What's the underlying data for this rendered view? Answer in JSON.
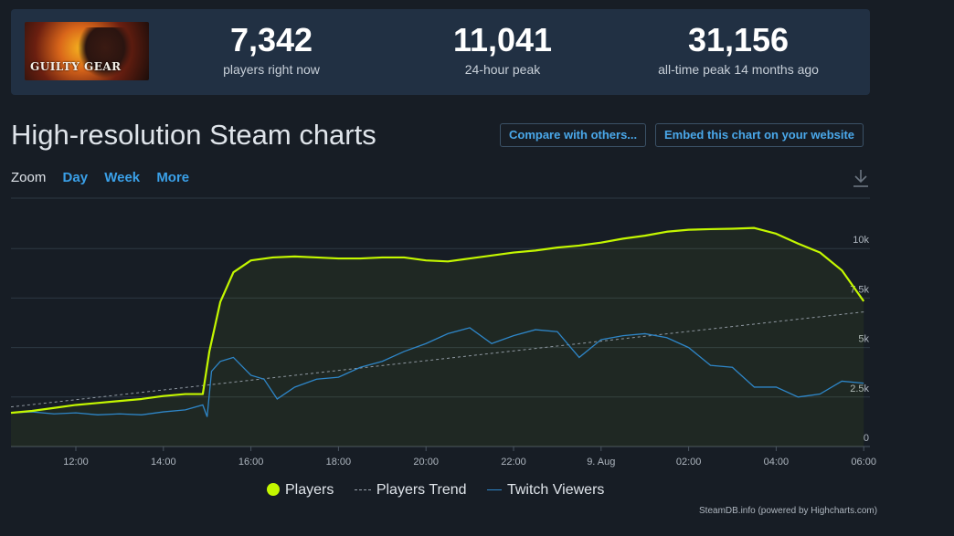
{
  "stats": {
    "current": {
      "value": "7,342",
      "label": "players right now"
    },
    "peak24": {
      "value": "11,041",
      "label": "24-hour peak"
    },
    "alltime": {
      "value": "31,156",
      "label": "all-time peak 14 months ago"
    }
  },
  "game": {
    "logo_text": "GUILTY GEAR"
  },
  "heading": "High-resolution Steam charts",
  "buttons": {
    "compare": "Compare with others...",
    "embed": "Embed this chart on your website"
  },
  "zoom": {
    "label": "Zoom",
    "options": [
      "Day",
      "Week",
      "More"
    ]
  },
  "legend": {
    "players": "Players",
    "trend": "Players Trend",
    "twitch": "Twitch Viewers"
  },
  "credit": "SteamDB.info (powered by Highcharts.com)",
  "colors": {
    "players": "#c4f700",
    "twitch": "#2e86c8",
    "trend": "#8f98a1",
    "accent": "#3aa0e8"
  },
  "chart_data": {
    "type": "line",
    "x_ticks": [
      "12:00",
      "14:00",
      "16:00",
      "18:00",
      "20:00",
      "22:00",
      "9. Aug",
      "02:00",
      "04:00",
      "06:00"
    ],
    "y_ticks": [
      "0",
      "2.5k",
      "5k",
      "7.5k",
      "10k"
    ],
    "ylim": [
      0,
      12500
    ],
    "x_unit": "hours since 12:00 (8 Aug)",
    "series": [
      {
        "name": "Players",
        "x": [
          -1.5,
          -1,
          -0.5,
          0,
          0.5,
          1,
          1.5,
          2,
          2.5,
          2.9,
          3.05,
          3.3,
          3.6,
          4.0,
          4.5,
          5,
          5.5,
          6,
          6.5,
          7,
          7.5,
          8,
          8.5,
          9,
          9.5,
          10,
          10.5,
          11,
          11.5,
          12,
          12.5,
          13,
          13.5,
          14,
          14.5,
          15,
          15.5,
          16,
          16.5,
          17,
          17.5,
          18
        ],
        "y": [
          1700,
          1800,
          1950,
          2100,
          2200,
          2300,
          2400,
          2550,
          2650,
          2650,
          4800,
          7300,
          8800,
          9400,
          9550,
          9600,
          9550,
          9500,
          9500,
          9550,
          9550,
          9400,
          9350,
          9500,
          9650,
          9800,
          9900,
          10050,
          10150,
          10300,
          10500,
          10650,
          10850,
          10950,
          10980,
          11000,
          11041,
          10750,
          10250,
          9800,
          8900,
          7342
        ]
      },
      {
        "name": "Players Trend",
        "x": [
          -1.5,
          18
        ],
        "y": [
          2000,
          6800
        ]
      },
      {
        "name": "Twitch Viewers",
        "x": [
          -1.5,
          -1,
          -0.5,
          0,
          0.5,
          1,
          1.5,
          2,
          2.5,
          2.9,
          3.0,
          3.1,
          3.3,
          3.6,
          4.0,
          4.3,
          4.6,
          5.0,
          5.5,
          6.0,
          6.5,
          7.0,
          7.5,
          8.0,
          8.5,
          9.0,
          9.5,
          10.0,
          10.5,
          11.0,
          11.5,
          12.0,
          12.5,
          13.0,
          13.5,
          14.0,
          14.5,
          15.0,
          15.5,
          15.7,
          16.0,
          16.5,
          17.0,
          17.5,
          18.0
        ],
        "y": [
          1700,
          1750,
          1650,
          1700,
          1600,
          1650,
          1600,
          1750,
          1850,
          2100,
          1500,
          3800,
          4300,
          4500,
          3600,
          3400,
          2400,
          3000,
          3400,
          3500,
          4000,
          4300,
          4800,
          5200,
          5700,
          6000,
          5200,
          5600,
          5900,
          5800,
          4500,
          5400,
          5600,
          5700,
          5500,
          5000,
          4100,
          4000,
          3000,
          3000,
          3000,
          2500,
          2650,
          3300,
          3200
        ]
      }
    ]
  }
}
